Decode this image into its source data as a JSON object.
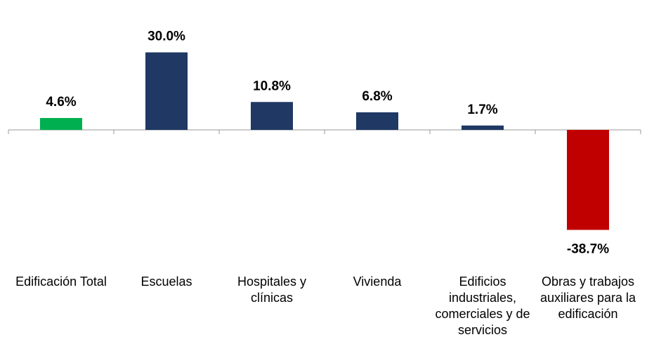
{
  "chart_data": {
    "type": "bar",
    "categories": [
      "Edificación Total",
      "Escuelas",
      "Hospitales y clínicas",
      "Vivienda",
      "Edificios industriales, comerciales y de servicios",
      "Obras y trabajos auxiliares para la edificación"
    ],
    "values": [
      4.6,
      30.0,
      10.8,
      6.8,
      1.7,
      -38.7
    ],
    "value_labels": [
      "4.6%",
      "30.0%",
      "10.8%",
      "6.8%",
      "1.7%",
      "-38.7%"
    ],
    "colors": [
      "#00b050",
      "#1f3864",
      "#1f3864",
      "#1f3864",
      "#1f3864",
      "#c00000"
    ],
    "ylim": [
      -50,
      50
    ]
  }
}
